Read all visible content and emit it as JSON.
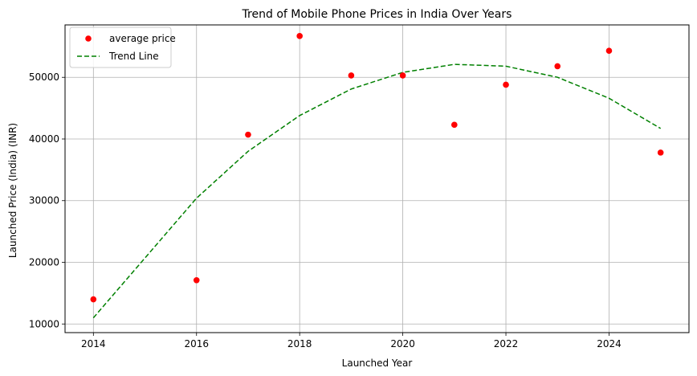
{
  "chart_data": {
    "type": "scatter",
    "title": "Trend of Mobile Phone Prices in India Over Years",
    "xlabel": "Launched Year",
    "ylabel": "Launched Price (India) (INR)",
    "xlim": [
      2013.45,
      2025.55
    ],
    "ylim": [
      8600,
      58500
    ],
    "xticks": [
      2014,
      2016,
      2018,
      2020,
      2022,
      2024
    ],
    "yticks": [
      10000,
      20000,
      30000,
      40000,
      50000
    ],
    "grid": true,
    "legend_position": "top-left",
    "series": [
      {
        "name": "average price",
        "kind": "scatter",
        "color": "#ff0000",
        "points": [
          {
            "x": 2014,
            "y": 14000
          },
          {
            "x": 2016,
            "y": 17100
          },
          {
            "x": 2017,
            "y": 40700
          },
          {
            "x": 2018,
            "y": 56700
          },
          {
            "x": 2019,
            "y": 50300
          },
          {
            "x": 2020,
            "y": 50300
          },
          {
            "x": 2021,
            "y": 42300
          },
          {
            "x": 2022,
            "y": 48800
          },
          {
            "x": 2023,
            "y": 51800
          },
          {
            "x": 2024,
            "y": 54300
          },
          {
            "x": 2025,
            "y": 37800
          }
        ]
      },
      {
        "name": "Trend Line",
        "kind": "line",
        "style": "dashed",
        "color": "#008000",
        "points": [
          {
            "x": 2014,
            "y": 11000
          },
          {
            "x": 2016,
            "y": 30400
          },
          {
            "x": 2017,
            "y": 38000
          },
          {
            "x": 2018,
            "y": 43800
          },
          {
            "x": 2019,
            "y": 48100
          },
          {
            "x": 2020,
            "y": 50800
          },
          {
            "x": 2021,
            "y": 52100
          },
          {
            "x": 2022,
            "y": 51800
          },
          {
            "x": 2023,
            "y": 50000
          },
          {
            "x": 2024,
            "y": 46600
          },
          {
            "x": 2025,
            "y": 41700
          }
        ]
      }
    ]
  }
}
